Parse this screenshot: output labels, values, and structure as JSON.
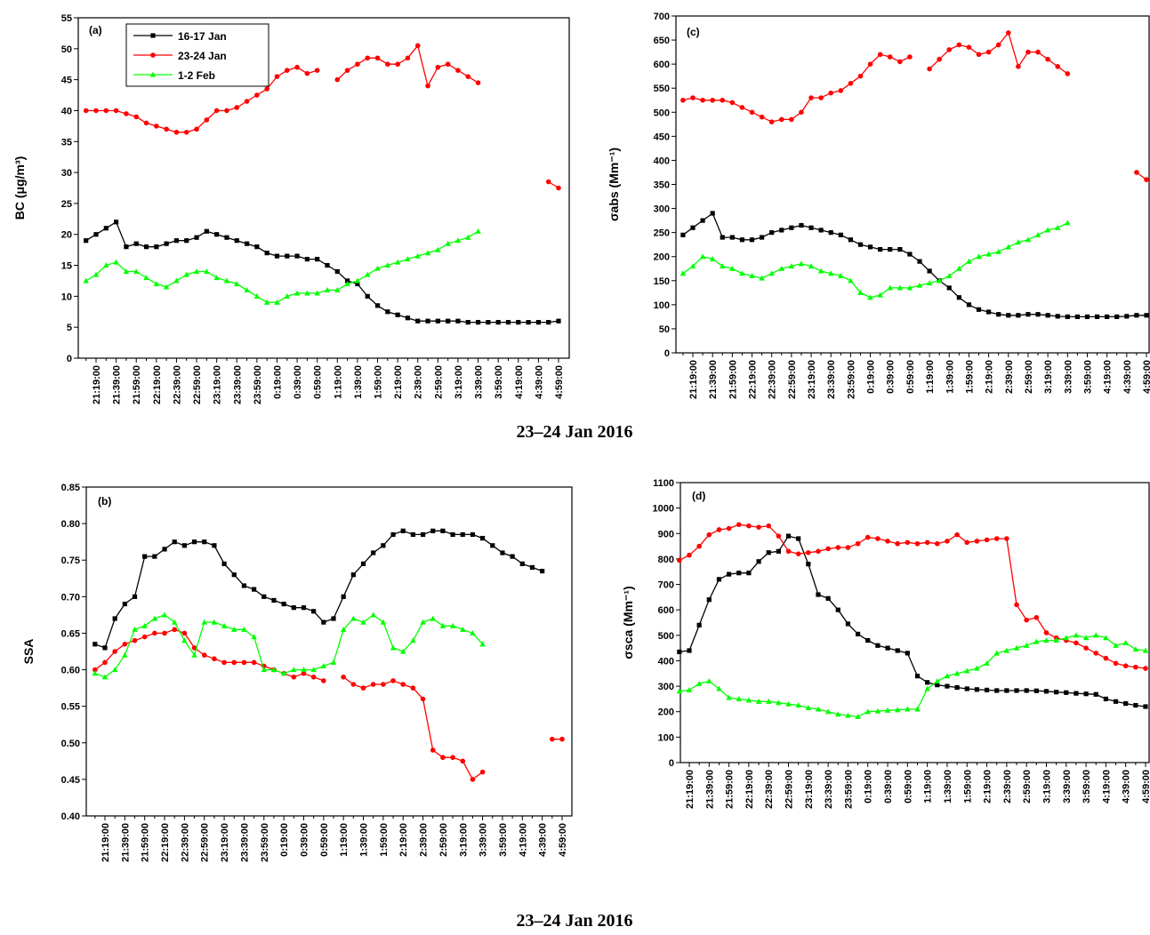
{
  "chart_data": [
    {
      "type": "line",
      "label": "(a)",
      "ylabel": "BC (μg/m³)",
      "xlabel": "23–24 Jan 2016",
      "legend": "upper left",
      "categories": [
        null,
        "21:19:00",
        null,
        "21:39:00",
        null,
        "21:59:00",
        null,
        "22:19:00",
        null,
        "22:39:00",
        null,
        "22:59:00",
        null,
        "23:19:00",
        null,
        "23:39:00",
        null,
        "23:59:00",
        null,
        "0:19:00",
        null,
        "0:39:00",
        null,
        "0:59:00",
        null,
        "1:19:00",
        null,
        "1:39:00",
        null,
        "1:59:00",
        null,
        "2:19:00",
        null,
        "2:39:00",
        null,
        "2:59:00",
        null,
        "3:19:00",
        null,
        "3:39:00",
        null,
        "3:59:00",
        null,
        "4:19:00",
        null,
        "4:39:00",
        null,
        "4:59:00"
      ],
      "ylim": [
        0,
        55
      ],
      "yticks": [
        0,
        5,
        10,
        15,
        20,
        25,
        30,
        35,
        40,
        45,
        50,
        55
      ],
      "series": [
        {
          "name": "16-17 Jan",
          "color": "#000000",
          "marker": "square",
          "values": [
            19,
            20,
            21,
            22,
            18,
            18.5,
            18,
            18,
            18.5,
            19,
            19,
            19.5,
            20.5,
            20,
            19.5,
            19,
            18.5,
            18,
            17,
            16.5,
            16.5,
            16.5,
            16,
            16,
            15,
            14,
            12.5,
            12,
            10,
            8.5,
            7.5,
            7,
            6.5,
            6,
            6,
            6,
            6,
            6,
            5.8,
            5.8,
            5.8,
            5.8,
            5.8,
            5.8,
            5.8,
            5.8,
            5.8,
            6
          ]
        },
        {
          "name": "23-24 Jan",
          "color": "#ff0000",
          "marker": "circle",
          "values": [
            40,
            40,
            40,
            40,
            39.5,
            39,
            38,
            37.5,
            37,
            36.5,
            36.5,
            37,
            38.5,
            40,
            40,
            40.5,
            41.5,
            42.5,
            43.5,
            45.5,
            46.5,
            47,
            46,
            46.5,
            null,
            45,
            46.5,
            47.5,
            48.5,
            48.5,
            47.5,
            47.5,
            48.5,
            50.5,
            44,
            47,
            47.5,
            46.5,
            45.5,
            44.5,
            null,
            null,
            null,
            null,
            null,
            null,
            28.5,
            27.5
          ]
        },
        {
          "name": "1-2 Feb",
          "color": "#00ff00",
          "marker": "triangle",
          "values": [
            12.5,
            13.5,
            15,
            15.5,
            14,
            14,
            13,
            12,
            11.5,
            12.5,
            13.5,
            14,
            14,
            13,
            12.5,
            12,
            11,
            10,
            9,
            9,
            10,
            10.5,
            10.5,
            10.5,
            11,
            11,
            12,
            12.5,
            13.5,
            14.5,
            15,
            15.5,
            16,
            16.5,
            17,
            17.5,
            18.5,
            19,
            19.5,
            20.5,
            null,
            null,
            null,
            null,
            null,
            null,
            null,
            null
          ]
        }
      ]
    },
    {
      "type": "line",
      "label": "(b)",
      "ylabel": "SSA",
      "xlabel": "23–24 Jan 2016",
      "categories": [
        null,
        "21:19:00",
        null,
        "21:39:00",
        null,
        "21:59:00",
        null,
        "22:19:00",
        null,
        "22:39:00",
        null,
        "22:59:00",
        null,
        "23:19:00",
        null,
        "23:39:00",
        null,
        "23:59:00",
        null,
        "0:19:00",
        null,
        "0:39:00",
        null,
        "0:59:00",
        null,
        "1:19:00",
        null,
        "1:39:00",
        null,
        "1:59:00",
        null,
        "2:19:00",
        null,
        "2:39:00",
        null,
        "2:59:00",
        null,
        "3:19:00",
        null,
        "3:39:00",
        null,
        "3:59:00",
        null,
        "4:19:00",
        null,
        "4:39:00",
        null,
        "4:59:00"
      ],
      "ylim": [
        0.4,
        0.85
      ],
      "yticks": [
        {
          "value": 0.4,
          "label": "0.40"
        },
        0.45,
        {
          "value": 0.5,
          "label": "0.50"
        },
        0.55,
        {
          "value": 0.6,
          "label": "0.60"
        },
        0.65,
        {
          "value": 0.7,
          "label": "0.70"
        },
        0.75,
        {
          "value": 0.8,
          "label": "0.80"
        },
        0.85
      ],
      "series": [
        {
          "color": "#000000",
          "marker": "square",
          "values": [
            0.635,
            0.63,
            0.67,
            0.69,
            0.7,
            0.755,
            0.755,
            0.765,
            0.775,
            0.77,
            0.775,
            0.775,
            0.77,
            0.745,
            0.73,
            0.715,
            0.71,
            0.7,
            0.695,
            0.69,
            0.685,
            0.685,
            0.68,
            0.665,
            0.67,
            0.7,
            0.73,
            0.745,
            0.76,
            0.77,
            0.785,
            0.79,
            0.785,
            0.785,
            0.79,
            0.79,
            0.785,
            0.785,
            0.785,
            0.78,
            0.77,
            0.76,
            0.755,
            0.745,
            0.74,
            0.735,
            null,
            null
          ]
        },
        {
          "color": "#ff0000",
          "marker": "circle",
          "values": [
            0.6,
            0.61,
            0.625,
            0.635,
            0.64,
            0.645,
            0.65,
            0.65,
            0.655,
            0.65,
            0.63,
            0.62,
            0.615,
            0.61,
            0.61,
            0.61,
            0.61,
            0.605,
            0.6,
            0.595,
            0.59,
            0.595,
            0.59,
            0.585,
            null,
            0.59,
            0.58,
            0.575,
            0.58,
            0.58,
            0.585,
            0.58,
            0.575,
            0.56,
            0.49,
            0.48,
            0.48,
            0.475,
            0.45,
            0.46,
            null,
            null,
            null,
            null,
            null,
            null,
            0.505,
            0.505
          ]
        },
        {
          "color": "#00ff00",
          "marker": "triangle",
          "values": [
            0.595,
            0.59,
            0.6,
            0.62,
            0.655,
            0.66,
            0.67,
            0.675,
            0.665,
            0.64,
            0.62,
            0.665,
            0.665,
            0.66,
            0.655,
            0.655,
            0.645,
            0.6,
            0.6,
            0.595,
            0.6,
            0.6,
            0.6,
            0.605,
            0.61,
            0.655,
            0.67,
            0.665,
            0.675,
            0.665,
            0.63,
            0.625,
            0.64,
            0.665,
            0.67,
            0.66,
            0.66,
            0.655,
            0.65,
            0.635,
            null,
            null,
            null,
            null,
            null,
            null,
            null,
            null
          ]
        }
      ]
    },
    {
      "type": "line",
      "label": "(c)",
      "ylabel": "σabs (Mm⁻¹)",
      "categories": [
        null,
        "21:19:00",
        null,
        "21:39:00",
        null,
        "21:59:00",
        null,
        "22:19:00",
        null,
        "22:39:00",
        null,
        "22:59:00",
        null,
        "23:19:00",
        null,
        "23:39:00",
        null,
        "23:59:00",
        null,
        "0:19:00",
        null,
        "0:39:00",
        null,
        "0:59:00",
        null,
        "1:19:00",
        null,
        "1:39:00",
        null,
        "1:59:00",
        null,
        "2:19:00",
        null,
        "2:39:00",
        null,
        "2:59:00",
        null,
        "3:19:00",
        null,
        "3:39:00",
        null,
        "3:59:00",
        null,
        "4:19:00",
        null,
        "4:39:00",
        null,
        "4:59:00"
      ],
      "ylim": [
        0,
        700
      ],
      "yticks": [
        0,
        50,
        100,
        150,
        200,
        250,
        300,
        350,
        400,
        450,
        500,
        550,
        600,
        650,
        700
      ],
      "series": [
        {
          "color": "#000000",
          "marker": "square",
          "values": [
            245,
            260,
            275,
            290,
            240,
            240,
            235,
            235,
            240,
            250,
            255,
            260,
            265,
            260,
            255,
            250,
            245,
            235,
            225,
            220,
            215,
            215,
            215,
            205,
            190,
            170,
            150,
            135,
            115,
            100,
            90,
            85,
            80,
            78,
            78,
            80,
            80,
            78,
            76,
            75,
            75,
            75,
            75,
            75,
            75,
            76,
            78,
            78
          ]
        },
        {
          "color": "#ff0000",
          "marker": "circle",
          "values": [
            525,
            530,
            525,
            525,
            525,
            520,
            510,
            500,
            490,
            480,
            485,
            485,
            500,
            530,
            530,
            540,
            545,
            560,
            575,
            600,
            620,
            615,
            605,
            615,
            null,
            590,
            610,
            630,
            640,
            635,
            620,
            625,
            640,
            665,
            595,
            625,
            625,
            610,
            595,
            580,
            null,
            null,
            null,
            null,
            null,
            null,
            375,
            360
          ]
        },
        {
          "color": "#00ff00",
          "marker": "triangle",
          "values": [
            165,
            180,
            200,
            195,
            180,
            175,
            165,
            160,
            155,
            165,
            175,
            180,
            185,
            180,
            170,
            165,
            160,
            150,
            125,
            115,
            120,
            135,
            135,
            135,
            140,
            145,
            150,
            160,
            175,
            190,
            200,
            205,
            210,
            220,
            230,
            235,
            245,
            255,
            260,
            270,
            null,
            null,
            null,
            null,
            null,
            null,
            null,
            null
          ]
        }
      ]
    },
    {
      "type": "line",
      "label": "(d)",
      "ylabel": "σsca (Mm⁻¹)",
      "categories": [
        null,
        "21:19:00",
        null,
        "21:39:00",
        null,
        "21:59:00",
        null,
        "22:19:00",
        null,
        "22:39:00",
        null,
        "22:59:00",
        null,
        "23:19:00",
        null,
        "23:39:00",
        null,
        "23:59:00",
        null,
        "0:19:00",
        null,
        "0:39:00",
        null,
        "0:59:00",
        null,
        "1:19:00",
        null,
        "1:39:00",
        null,
        "1:59:00",
        null,
        "2:19:00",
        null,
        "2:39:00",
        null,
        "2:59:00",
        null,
        "3:19:00",
        null,
        "3:39:00",
        null,
        "3:59:00",
        null,
        "4:19:00",
        null,
        "4:39:00",
        null,
        "4:59:00"
      ],
      "ylim": [
        0,
        1100
      ],
      "yticks": [
        0,
        100,
        200,
        300,
        400,
        500,
        600,
        700,
        800,
        900,
        1000,
        1100
      ],
      "series": [
        {
          "color": "#000000",
          "marker": "square",
          "values": [
            435,
            440,
            540,
            640,
            720,
            740,
            745,
            745,
            790,
            825,
            830,
            890,
            880,
            780,
            660,
            645,
            600,
            545,
            505,
            480,
            460,
            450,
            440,
            430,
            340,
            315,
            305,
            300,
            295,
            290,
            287,
            285,
            283,
            283,
            283,
            283,
            282,
            280,
            277,
            275,
            272,
            270,
            268,
            250,
            240,
            232,
            225,
            220
          ]
        },
        {
          "color": "#ff0000",
          "marker": "circle",
          "values": [
            795,
            815,
            850,
            895,
            915,
            920,
            935,
            930,
            925,
            930,
            890,
            830,
            820,
            825,
            830,
            840,
            845,
            845,
            860,
            885,
            880,
            870,
            860,
            865,
            860,
            865,
            860,
            870,
            895,
            865,
            870,
            875,
            880,
            880,
            620,
            560,
            570,
            510,
            490,
            480,
            470,
            450,
            430,
            410,
            390,
            380,
            375,
            370
          ]
        },
        {
          "color": "#00ff00",
          "marker": "triangle",
          "values": [
            280,
            285,
            310,
            320,
            290,
            255,
            250,
            245,
            240,
            240,
            235,
            230,
            225,
            215,
            210,
            200,
            190,
            185,
            180,
            200,
            202,
            205,
            207,
            210,
            210,
            290,
            320,
            340,
            350,
            360,
            370,
            390,
            430,
            440,
            450,
            460,
            475,
            480,
            480,
            490,
            500,
            490,
            500,
            490,
            460,
            470,
            445,
            440
          ]
        }
      ]
    }
  ]
}
